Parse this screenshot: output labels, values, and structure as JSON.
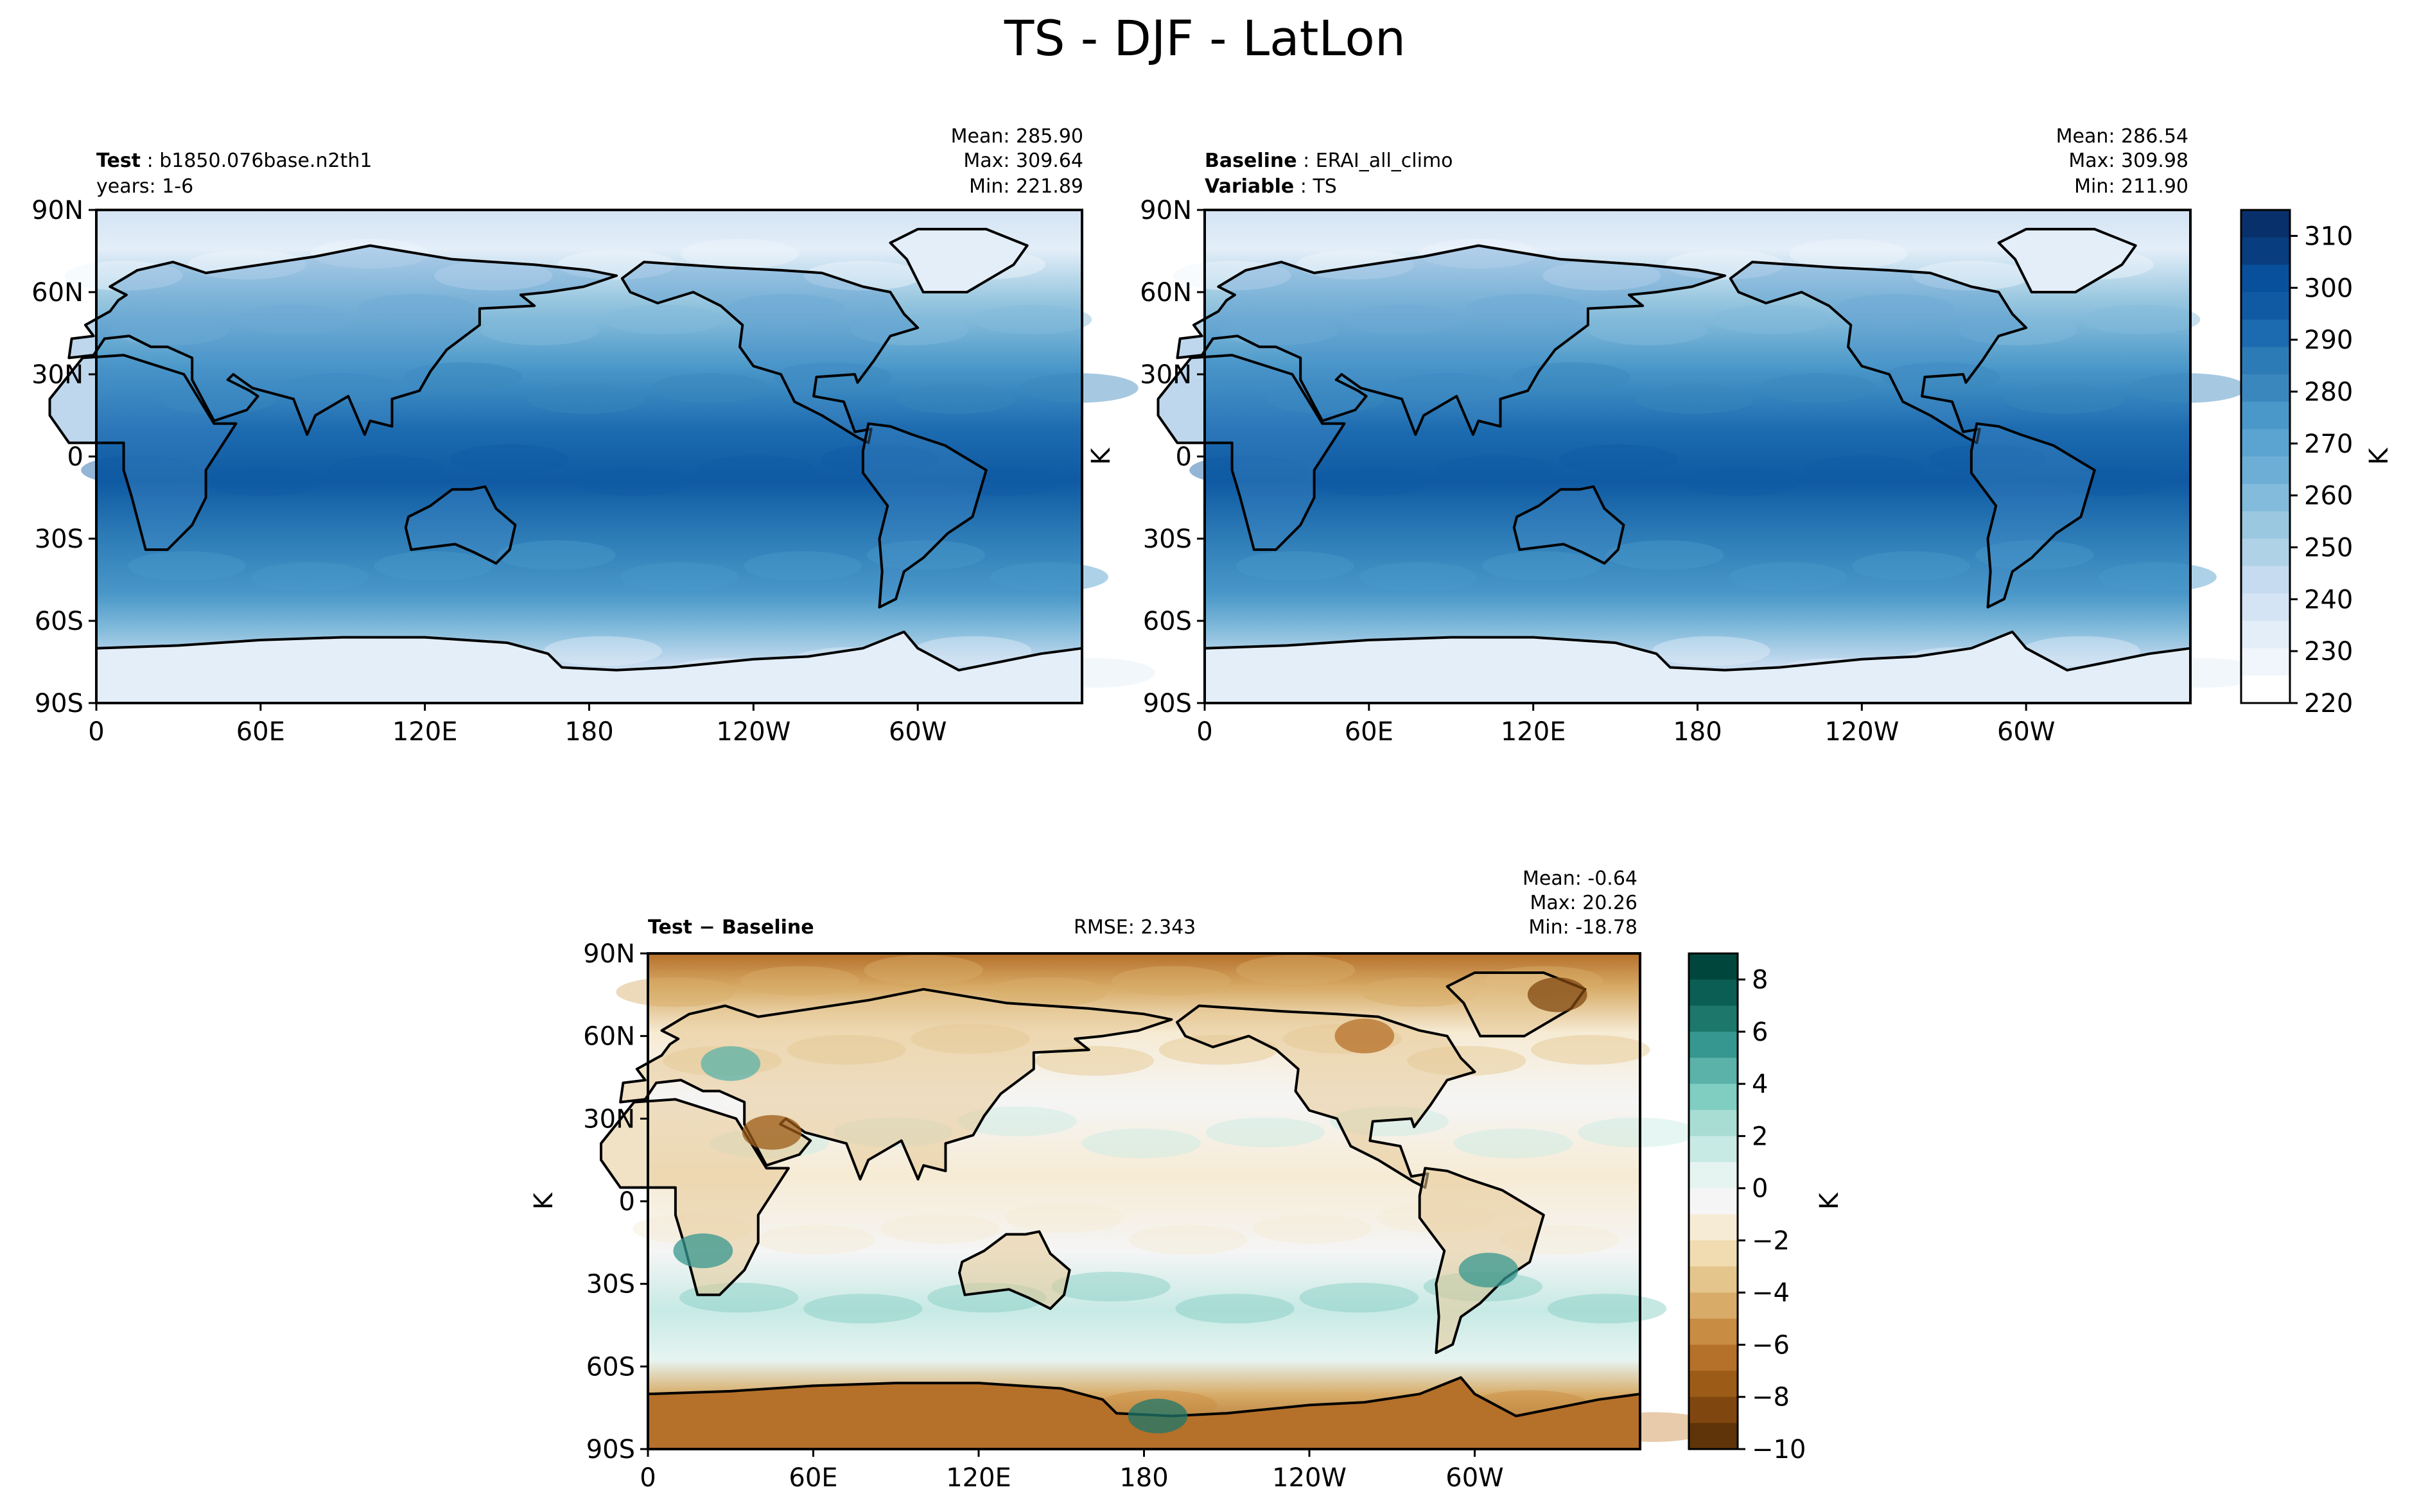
{
  "title": "TS - DJF - LatLon",
  "chart_data": [
    {
      "type": "heatmap",
      "id": "test",
      "title_left": {
        "label": "Test",
        "value": "b1850.076base.n2th1",
        "line2": "years: 1-6"
      },
      "stats": [
        "Mean: 285.90",
        "Max: 309.64",
        "Min: 221.89"
      ],
      "x_ticks": [
        "0",
        "60E",
        "120E",
        "180",
        "120W",
        "60W"
      ],
      "y_ticks": [
        "90N",
        "60N",
        "30N",
        "0",
        "30S",
        "60S",
        "90S"
      ],
      "xlim": [
        0,
        360
      ],
      "ylim": [
        -90,
        90
      ],
      "colormap": "Blues",
      "color_range": [
        220,
        315
      ]
    },
    {
      "type": "heatmap",
      "id": "baseline",
      "title_left": {
        "label": "Baseline",
        "value": "ERAI_all_climo",
        "label2": "Variable",
        "value2": "TS"
      },
      "stats": [
        "Mean: 286.54",
        "Max: 309.98",
        "Min: 211.90"
      ],
      "x_ticks": [
        "0",
        "60E",
        "120E",
        "180",
        "120W",
        "60W"
      ],
      "y_ticks": [
        "90N",
        "60N",
        "30N",
        "0",
        "30S",
        "60S",
        "90S"
      ],
      "xlim": [
        0,
        360
      ],
      "ylim": [
        -90,
        90
      ],
      "ylabel": "K",
      "colormap": "Blues",
      "color_range": [
        220,
        315
      ],
      "colorbar": {
        "ticks": [
          "310",
          "300",
          "290",
          "280",
          "270",
          "260",
          "250",
          "240",
          "230",
          "220"
        ],
        "label": "K",
        "colors": [
          "#08306b",
          "#083d7f",
          "#08509b",
          "#0f5aa3",
          "#1c6aaf",
          "#2c7bb6",
          "#3a87bd",
          "#4a98c9",
          "#5ba3d0",
          "#6caed6",
          "#82bbdb",
          "#9ac8e0",
          "#b0d2e7",
          "#c6dbef",
          "#d4e4f4",
          "#e3eef8",
          "#f0f6fc",
          "#ffffff"
        ]
      }
    },
    {
      "type": "heatmap",
      "id": "diff",
      "title_left": {
        "label": "Test − Baseline"
      },
      "rmse": "RMSE: 2.343",
      "stats": [
        "Mean: -0.64",
        "Max: 20.26",
        "Min: -18.78"
      ],
      "x_ticks": [
        "0",
        "60E",
        "120E",
        "180",
        "120W",
        "60W"
      ],
      "y_ticks": [
        "90N",
        "60N",
        "30N",
        "0",
        "30S",
        "60S",
        "90S"
      ],
      "xlim": [
        0,
        360
      ],
      "ylim": [
        -90,
        90
      ],
      "ylabel": "K",
      "colormap": "BrBG",
      "color_range": [
        -10,
        9
      ],
      "colorbar": {
        "ticks": [
          "8",
          "6",
          "4",
          "2",
          "0",
          "−2",
          "−4",
          "−6",
          "−8",
          "−10"
        ],
        "label": "K",
        "colors": [
          "#01463c",
          "#0b5e54",
          "#1d776b",
          "#35978f",
          "#5ab2a8",
          "#80cdc1",
          "#a8ddd4",
          "#c7eae5",
          "#e6f4f1",
          "#f5f5f5",
          "#f6ebd4",
          "#f0dcb0",
          "#e4c58c",
          "#d8ac68",
          "#c98c43",
          "#b5702a",
          "#9c5b17",
          "#7f470f",
          "#5e3408"
        ]
      }
    }
  ]
}
